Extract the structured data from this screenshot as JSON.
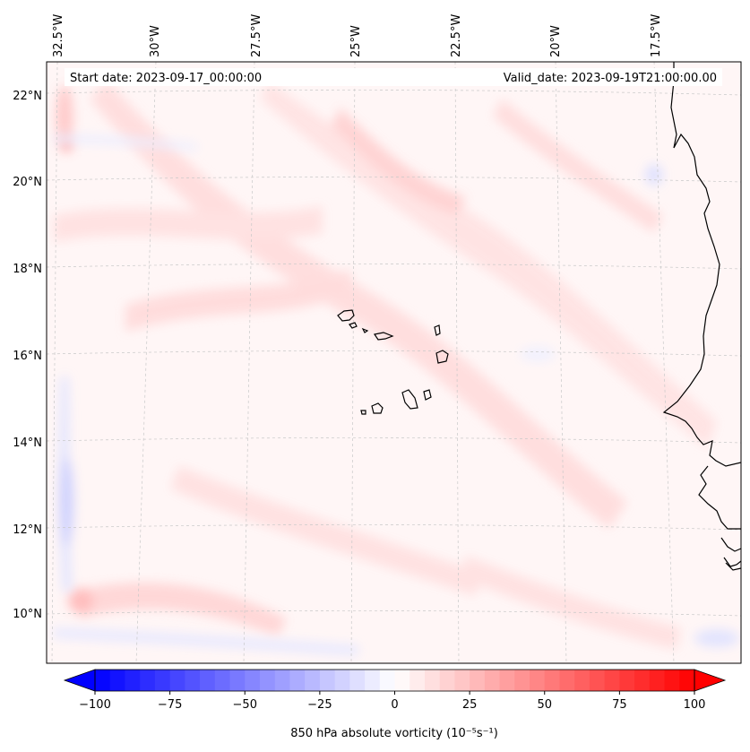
{
  "header": {
    "start_date": "Start date: 2023-09-17_00:00:00",
    "valid_date": "Valid_date: 2023-09-19T21:00:00.00"
  },
  "longitude_labels": [
    "32.5°W",
    "30°W",
    "27.5°W",
    "25°W",
    "22.5°W",
    "20°W",
    "17.5°W"
  ],
  "latitude_labels": [
    "22°N",
    "20°N",
    "18°N",
    "16°N",
    "14°N",
    "12°N",
    "10°N"
  ],
  "colorbar": {
    "label": "850 hPa absolute vorticity (10⁻⁵s⁻¹)",
    "tick_labels": [
      "−100",
      "−75",
      "−50",
      "−25",
      "0",
      "25",
      "50",
      "75",
      "100"
    ],
    "min": -100,
    "max": 100,
    "colormap": "bwr",
    "negative_color": "#0000ff",
    "neutral_color": "#ffffff",
    "positive_color": "#ff0000"
  },
  "map": {
    "field_background": "#fff6f6",
    "coastline_color": "#000000",
    "gridline_color": "#c8c8c8"
  }
}
